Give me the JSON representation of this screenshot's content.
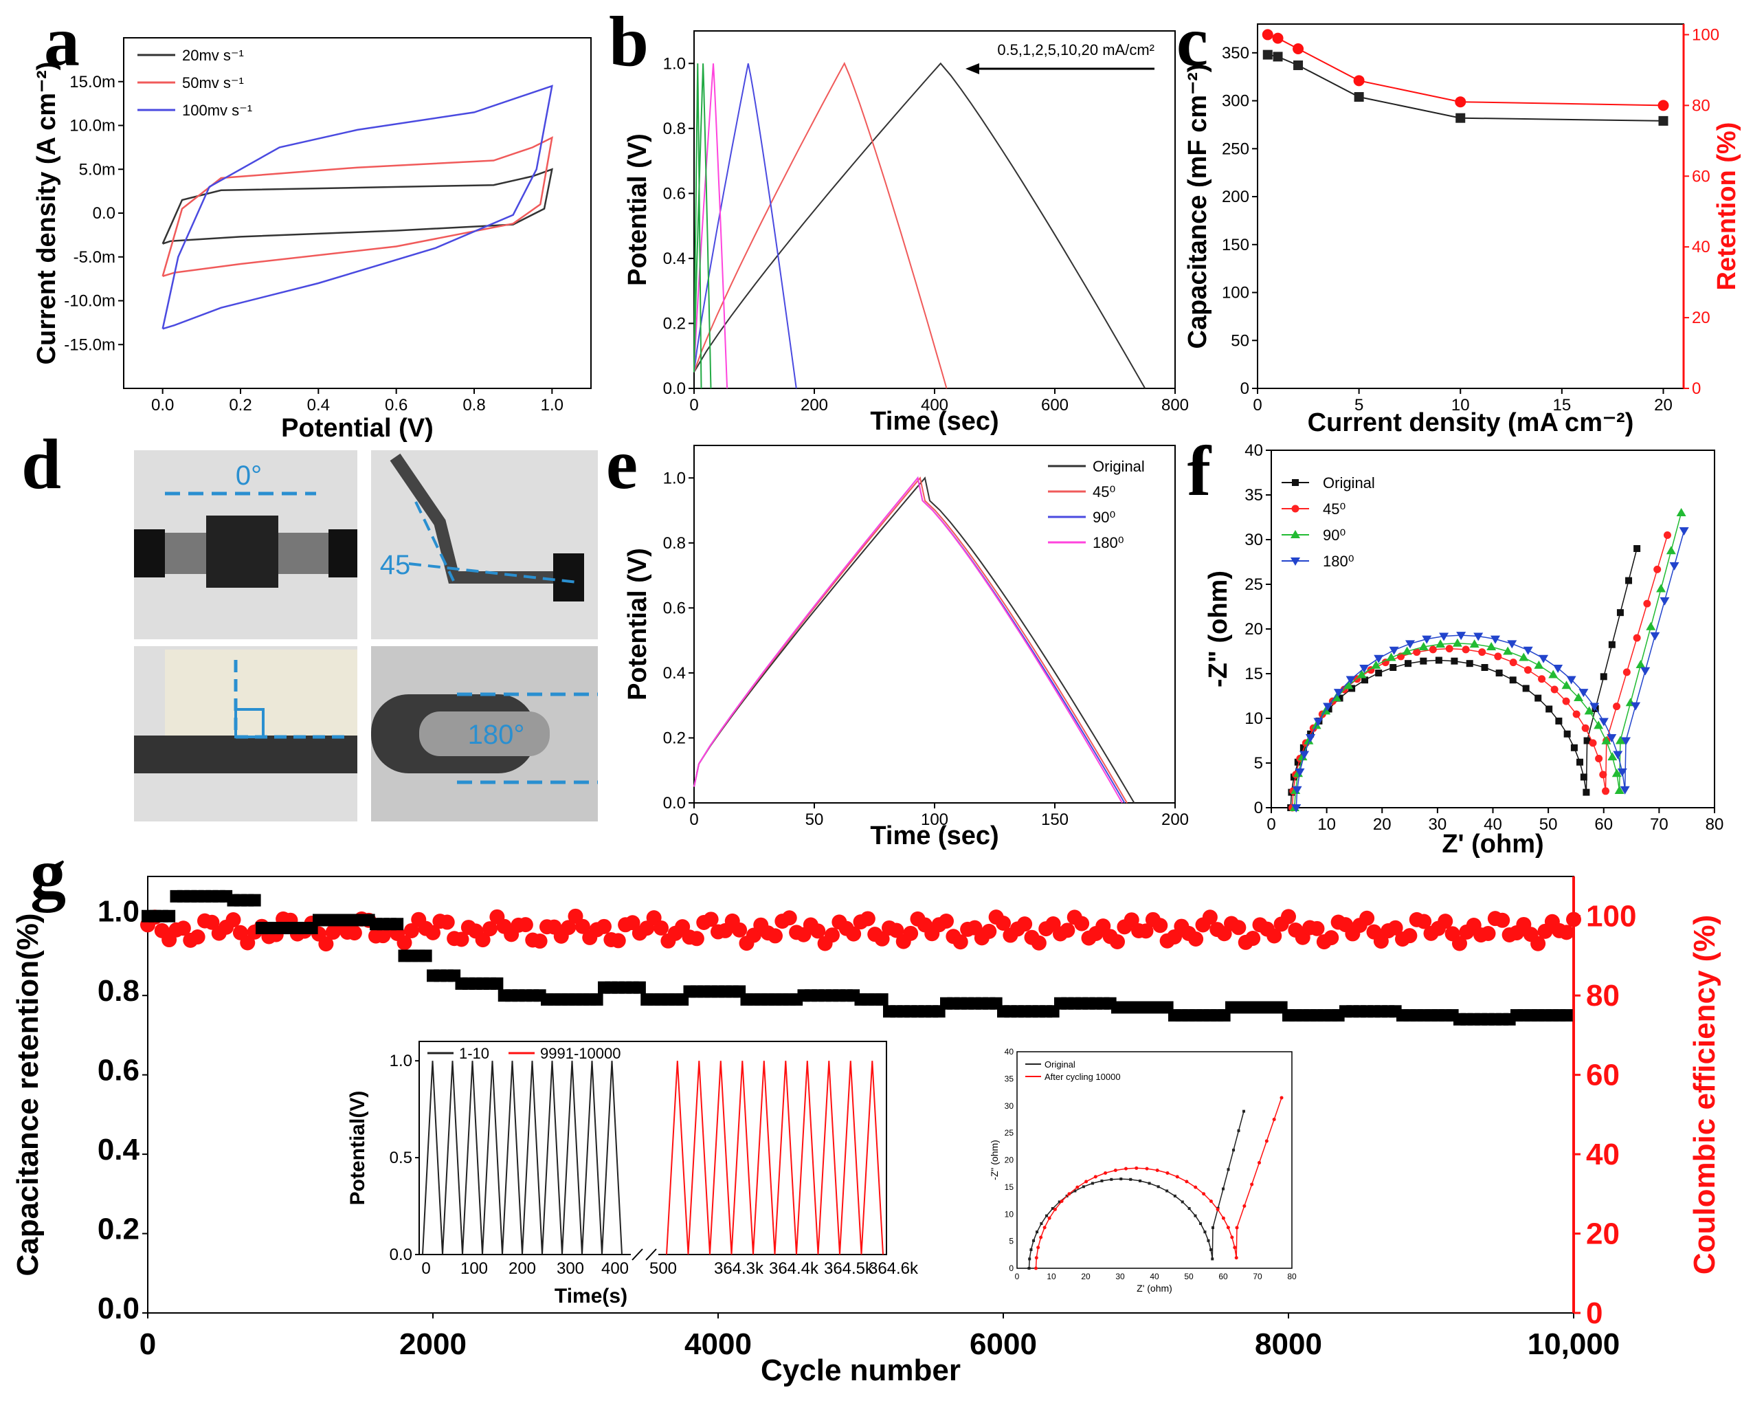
{
  "panel_labels": [
    "a",
    "b",
    "c",
    "d",
    "e",
    "f",
    "g"
  ],
  "colors": {
    "black": "#333333",
    "red": "#f05a5a",
    "blue": "#4a4ae0",
    "green": "#22aa44",
    "magenta": "#ff44dd",
    "navy": "#2244cc",
    "dashed": "#2a8fd0",
    "redstrong": "#ff1010"
  },
  "photo_labels": {
    "p0": "0°",
    "p45": "45",
    "p180": "180°"
  },
  "chart_data": [
    {
      "id": "a",
      "type": "line",
      "title": "",
      "xlabel": "Potential (V)",
      "ylabel": "Current density (A cm⁻²)",
      "xlim": [
        -0.1,
        1.1
      ],
      "ylim": [
        -20,
        20
      ],
      "xticks": [
        0.0,
        0.2,
        0.4,
        0.6,
        0.8,
        1.0
      ],
      "xtick_labels": [
        "0.0",
        "0.2",
        "0.4",
        "0.6",
        "0.8",
        "1.0"
      ],
      "yticks": [
        -15,
        -10,
        -5,
        0,
        5,
        10,
        15
      ],
      "ytick_labels": [
        "-15.0m",
        "-10.0m",
        "-5.0m",
        "0.0",
        "5.0m",
        "10.0m",
        "15.0m"
      ],
      "legend": [
        "20mv s⁻¹",
        "50mv s⁻¹",
        "100mv s⁻¹"
      ],
      "series": [
        {
          "name": "20mv s⁻¹",
          "color": "#333333",
          "upper": [
            [
              0,
              -3.5
            ],
            [
              0.05,
              1.5
            ],
            [
              0.15,
              2.6
            ],
            [
              0.5,
              2.9
            ],
            [
              0.85,
              3.2
            ],
            [
              0.95,
              4.2
            ],
            [
              1.0,
              5.0
            ]
          ],
          "lower": [
            [
              1.0,
              5.0
            ],
            [
              0.98,
              0.5
            ],
            [
              0.9,
              -1.3
            ],
            [
              0.6,
              -2.0
            ],
            [
              0.2,
              -2.7
            ],
            [
              0.02,
              -3.2
            ],
            [
              0,
              -3.5
            ]
          ]
        },
        {
          "name": "50mv s⁻¹",
          "color": "#f05a5a",
          "upper": [
            [
              0,
              -7.2
            ],
            [
              0.05,
              0.5
            ],
            [
              0.15,
              4.0
            ],
            [
              0.5,
              5.2
            ],
            [
              0.85,
              6.0
            ],
            [
              0.95,
              7.5
            ],
            [
              1.0,
              8.6
            ]
          ],
          "lower": [
            [
              1.0,
              8.6
            ],
            [
              0.97,
              1.0
            ],
            [
              0.9,
              -1.2
            ],
            [
              0.6,
              -3.8
            ],
            [
              0.2,
              -5.8
            ],
            [
              0.03,
              -6.8
            ],
            [
              0,
              -7.2
            ]
          ]
        },
        {
          "name": "100mv s⁻¹",
          "color": "#4a4ae0",
          "upper": [
            [
              0,
              -13.2
            ],
            [
              0.04,
              -5
            ],
            [
              0.12,
              3
            ],
            [
              0.3,
              7.5
            ],
            [
              0.5,
              9.5
            ],
            [
              0.8,
              11.5
            ],
            [
              1.0,
              14.5
            ]
          ],
          "lower": [
            [
              1.0,
              14.5
            ],
            [
              0.96,
              5
            ],
            [
              0.9,
              -0.2
            ],
            [
              0.7,
              -4
            ],
            [
              0.4,
              -8
            ],
            [
              0.15,
              -10.8
            ],
            [
              0.03,
              -12.8
            ],
            [
              0,
              -13.2
            ]
          ]
        }
      ]
    },
    {
      "id": "b",
      "type": "line",
      "title": "",
      "xlabel": "Time (sec)",
      "ylabel": "Potential (V)",
      "xlim": [
        0,
        800
      ],
      "ylim": [
        0,
        1.1
      ],
      "xticks": [
        0,
        200,
        400,
        600,
        800
      ],
      "xtick_labels": [
        "0",
        "200",
        "400",
        "600",
        "800"
      ],
      "yticks": [
        0.0,
        0.2,
        0.4,
        0.6,
        0.8,
        1.0
      ],
      "ytick_labels": [
        "0.0",
        "0.2",
        "0.4",
        "0.6",
        "0.8",
        "1.0"
      ],
      "annotation": "0.5,1,2,5,10,20 mA/cm²",
      "series": [
        {
          "name": "0.5 mA/cm²",
          "color": "#333333",
          "peak": 410,
          "end": 750
        },
        {
          "name": "1 mA/cm²",
          "color": "#f05a5a",
          "peak": 250,
          "end": 420
        },
        {
          "name": "2 mA/cm²",
          "color": "#4a4ae0",
          "peak": 90,
          "end": 170
        },
        {
          "name": "5 mA/cm²",
          "color": "#ff44dd",
          "peak": 32,
          "end": 55
        },
        {
          "name": "10 mA/cm²",
          "color": "#22aa44",
          "peak": 15,
          "end": 28
        },
        {
          "name": "20 mA/cm²",
          "color": "#22aa44",
          "peak": 6,
          "end": 12
        }
      ]
    },
    {
      "id": "c",
      "type": "scatter",
      "title": "",
      "xlabel": "Current density (mA cm⁻²)",
      "ylabel": "Capacitance (mF cm⁻²)",
      "ylabel_right": "Retention (%)",
      "xlim": [
        0,
        21
      ],
      "ylim": [
        0,
        380
      ],
      "ylim_right": [
        0,
        103
      ],
      "xticks": [
        0,
        5,
        10,
        15,
        20
      ],
      "xtick_labels": [
        "0",
        "5",
        "10",
        "15",
        "20"
      ],
      "yticks": [
        0,
        50,
        100,
        150,
        200,
        250,
        300,
        350
      ],
      "ytick_labels": [
        "0",
        "50",
        "100",
        "150",
        "200",
        "250",
        "300",
        "350"
      ],
      "yticks_right": [
        0,
        20,
        40,
        60,
        80,
        100
      ],
      "ytick_labels_right": [
        "0",
        "20",
        "40",
        "60",
        "80",
        "100"
      ],
      "x": [
        0.5,
        1,
        2,
        5,
        10,
        20
      ],
      "capacitance": [
        348,
        346,
        337,
        304,
        282,
        279
      ],
      "retention": [
        100,
        99,
        96,
        87,
        81,
        80
      ]
    },
    {
      "id": "e",
      "type": "line",
      "title": "",
      "xlabel": "Time (sec)",
      "ylabel": "Potential (V)",
      "xlim": [
        0,
        200
      ],
      "ylim": [
        0,
        1.1
      ],
      "xticks": [
        0,
        50,
        100,
        150,
        200
      ],
      "xtick_labels": [
        "0",
        "50",
        "100",
        "150",
        "200"
      ],
      "yticks": [
        0.0,
        0.2,
        0.4,
        0.6,
        0.8,
        1.0
      ],
      "ytick_labels": [
        "0.0",
        "0.2",
        "0.4",
        "0.6",
        "0.8",
        "1.0"
      ],
      "legend": [
        "Original",
        "45⁰",
        "90⁰",
        "180⁰"
      ],
      "series": [
        {
          "name": "Original",
          "color": "#333333",
          "peak": 96,
          "end": 183
        },
        {
          "name": "45⁰",
          "color": "#f05a5a",
          "peak": 94,
          "end": 180
        },
        {
          "name": "90⁰",
          "color": "#4a4ae0",
          "peak": 93,
          "end": 179
        },
        {
          "name": "180⁰",
          "color": "#ff44dd",
          "peak": 93,
          "end": 178
        }
      ]
    },
    {
      "id": "f",
      "type": "scatter",
      "title": "",
      "xlabel": "Z' (ohm)",
      "ylabel": "-Z\" (ohm)",
      "xlim": [
        0,
        80
      ],
      "ylim": [
        0,
        40
      ],
      "xticks": [
        0,
        10,
        20,
        30,
        40,
        50,
        60,
        70,
        80
      ],
      "xtick_labels": [
        "0",
        "10",
        "20",
        "30",
        "40",
        "50",
        "60",
        "70",
        "80"
      ],
      "yticks": [
        0,
        5,
        10,
        15,
        20,
        25,
        30,
        35,
        40
      ],
      "ytick_labels": [
        "0",
        "5",
        "10",
        "15",
        "20",
        "25",
        "30",
        "35",
        "40"
      ],
      "legend": [
        "Original",
        "45⁰",
        "90⁰",
        "180⁰"
      ],
      "series": [
        {
          "name": "Original",
          "color": "#111111",
          "marker": "square",
          "r0": 3.5,
          "r1": 57,
          "h": 16.5,
          "tail_end": [
            66,
            29
          ]
        },
        {
          "name": "45⁰",
          "color": "#ff2222",
          "marker": "circle",
          "r0": 3.8,
          "r1": 60.5,
          "h": 17.8,
          "tail_end": [
            71.5,
            30.5
          ]
        },
        {
          "name": "90⁰",
          "color": "#22bb33",
          "marker": "triangle",
          "r0": 4.2,
          "r1": 63,
          "h": 18.4,
          "tail_end": [
            74,
            33
          ]
        },
        {
          "name": "180⁰",
          "color": "#2244cc",
          "marker": "triangle-down",
          "r0": 4.5,
          "r1": 64,
          "h": 19.3,
          "tail_end": [
            74.5,
            31
          ]
        }
      ]
    },
    {
      "id": "g",
      "type": "scatter",
      "title": "",
      "xlabel": "Cycle number",
      "ylabel": "Capacitance retention(%)",
      "ylabel_right": "Coulombic efficiency (%)",
      "xlim": [
        0,
        10000
      ],
      "ylim": [
        0,
        1.1
      ],
      "ylim_right": [
        0,
        110
      ],
      "xticks": [
        0,
        2000,
        4000,
        6000,
        8000,
        10000
      ],
      "xtick_labels": [
        "0",
        "2000",
        "4000",
        "6000",
        "8000",
        "10,000"
      ],
      "yticks": [
        0.0,
        0.2,
        0.4,
        0.6,
        0.8,
        1.0
      ],
      "ytick_labels": [
        "0.0",
        "0.2",
        "0.4",
        "0.6",
        "0.8",
        "1.0"
      ],
      "yticks_right": [
        0,
        20,
        40,
        60,
        80,
        100
      ],
      "ytick_labels_right": [
        "0",
        "20",
        "40",
        "60",
        "80",
        "100"
      ],
      "retention_steps": [
        [
          0,
          1.0
        ],
        [
          200,
          1.05
        ],
        [
          600,
          1.04
        ],
        [
          800,
          0.97
        ],
        [
          1200,
          0.99
        ],
        [
          1600,
          0.98
        ],
        [
          1800,
          0.9
        ],
        [
          2000,
          0.85
        ],
        [
          2200,
          0.83
        ],
        [
          2500,
          0.8
        ],
        [
          2800,
          0.79
        ],
        [
          3200,
          0.82
        ],
        [
          3500,
          0.79
        ],
        [
          3800,
          0.81
        ],
        [
          4200,
          0.79
        ],
        [
          4600,
          0.8
        ],
        [
          5000,
          0.79
        ],
        [
          5200,
          0.76
        ],
        [
          5600,
          0.78
        ],
        [
          6000,
          0.76
        ],
        [
          6400,
          0.78
        ],
        [
          6800,
          0.77
        ],
        [
          7200,
          0.75
        ],
        [
          7600,
          0.77
        ],
        [
          8000,
          0.75
        ],
        [
          8400,
          0.76
        ],
        [
          8800,
          0.75
        ],
        [
          9200,
          0.74
        ],
        [
          9600,
          0.75
        ],
        [
          10000,
          0.75
        ]
      ],
      "efficiency_mean": 96.5,
      "insets": [
        {
          "id": "g1",
          "type": "line",
          "xlabel": "Time(s)",
          "ylabel": "Potential(V)",
          "ylim": [
            0,
            1.1
          ],
          "yticks": [
            0.0,
            0.5,
            1.0
          ],
          "ytick_labels": [
            "0.0",
            "0.5",
            "1.0"
          ],
          "xtick_labels": [
            "0",
            "100",
            "200",
            "300",
            "400",
            "500",
            "364.3k",
            "364.4k",
            "364.5k",
            "364.6k"
          ],
          "legend": [
            "1-10",
            "9991-10000"
          ],
          "cycles": 10
        },
        {
          "id": "g2",
          "type": "scatter",
          "xlabel": "Z' (ohm)",
          "ylabel": "-Z\" (ohm)",
          "xlim": [
            0,
            80
          ],
          "ylim": [
            0,
            40
          ],
          "xtick_labels": [
            "0",
            "10",
            "20",
            "30",
            "40",
            "50",
            "60",
            "70",
            "80"
          ],
          "ytick_labels": [
            "0",
            "5",
            "10",
            "15",
            "20",
            "25",
            "30",
            "35",
            "40"
          ],
          "legend": [
            "Original",
            "After cycling 10000"
          ]
        }
      ]
    }
  ]
}
